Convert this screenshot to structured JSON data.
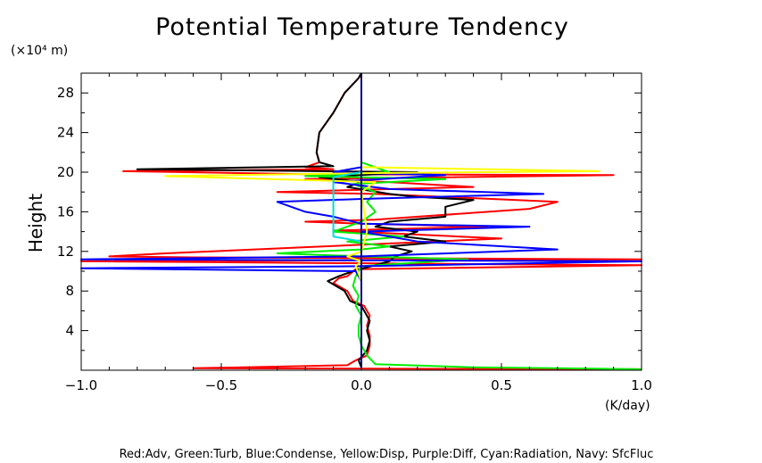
{
  "chart_data": {
    "type": "line",
    "title": "Potential Temperature Tendency",
    "y_unit": "(×10⁴ m)",
    "ylabel": "Height",
    "x_unit": "(K/day)",
    "xlim": [
      -1.0,
      1.0
    ],
    "ylim": [
      0,
      30
    ],
    "x_ticks": [
      -1.0,
      -0.5,
      0.0,
      0.5,
      1.0
    ],
    "x_tick_labels": [
      "−1.0",
      "−0.5",
      "0.0",
      "0.5",
      "1.0"
    ],
    "y_ticks": [
      4,
      8,
      12,
      16,
      20,
      24,
      28
    ],
    "y_tick_labels": [
      "4",
      "8",
      "12",
      "16",
      "20",
      "24",
      "28"
    ],
    "grid": false,
    "footer": "Red:Adv, Green:Turb, Blue:Condense, Yellow:Disp, Purple:Diff, Cyan:Radiation, Navy: SfcFluc",
    "series": [
      {
        "color": "#ff0000",
        "points": [
          [
            1.0,
            0.1
          ],
          [
            -0.6,
            0.2
          ],
          [
            -0.05,
            0.5
          ],
          [
            -0.02,
            1.0
          ],
          [
            0.02,
            1.5
          ],
          [
            0.03,
            2.5
          ],
          [
            0.03,
            3.5
          ],
          [
            0.02,
            4.5
          ],
          [
            0.03,
            5.5
          ],
          [
            0.01,
            6.5
          ],
          [
            -0.03,
            7.0
          ],
          [
            -0.05,
            8.0
          ],
          [
            -0.1,
            8.8
          ],
          [
            -0.08,
            9.3
          ],
          [
            -0.05,
            9.5
          ],
          [
            -0.02,
            10.2
          ],
          [
            1.0,
            10.6
          ],
          [
            -1.0,
            11.0
          ],
          [
            1.0,
            11.2
          ],
          [
            -0.6,
            11.4
          ],
          [
            -0.9,
            11.5
          ],
          [
            -0.7,
            11.8
          ],
          [
            -0.3,
            12.3
          ],
          [
            0.5,
            13.3
          ],
          [
            -0.1,
            14.1
          ],
          [
            0.45,
            14.5
          ],
          [
            0.0,
            14.8
          ],
          [
            -0.2,
            15.0
          ],
          [
            0.05,
            15.2
          ],
          [
            0.6,
            16.3
          ],
          [
            0.7,
            17.0
          ],
          [
            0.3,
            17.5
          ],
          [
            0.05,
            17.8
          ],
          [
            -0.3,
            18.0
          ],
          [
            0.4,
            18.5
          ],
          [
            0.1,
            19.0
          ],
          [
            -0.2,
            19.3
          ],
          [
            0.9,
            19.7
          ],
          [
            -0.2,
            19.8
          ],
          [
            -0.85,
            20.1
          ],
          [
            -0.1,
            20.3
          ],
          [
            -0.2,
            20.5
          ],
          [
            -0.15,
            21.0
          ],
          [
            -0.16,
            22.0
          ],
          [
            -0.15,
            24.0
          ],
          [
            -0.1,
            26.0
          ],
          [
            -0.06,
            28.0
          ],
          [
            -0.01,
            29.5
          ],
          [
            0.0,
            30.0
          ]
        ]
      },
      {
        "color": "#000000",
        "points": [
          [
            0.0,
            0.3
          ],
          [
            -0.01,
            1.0
          ],
          [
            0.02,
            2.0
          ],
          [
            0.03,
            3.0
          ],
          [
            0.02,
            4.0
          ],
          [
            0.03,
            5.0
          ],
          [
            0.0,
            6.5
          ],
          [
            -0.04,
            7.0
          ],
          [
            -0.06,
            8.0
          ],
          [
            -0.12,
            9.0
          ],
          [
            -0.08,
            9.5
          ],
          [
            -0.03,
            10.0
          ],
          [
            0.1,
            11.0
          ],
          [
            0.12,
            11.5
          ],
          [
            0.18,
            12.0
          ],
          [
            0.1,
            12.5
          ],
          [
            0.3,
            13.0
          ],
          [
            0.15,
            13.5
          ],
          [
            0.2,
            14.0
          ],
          [
            0.05,
            14.5
          ],
          [
            0.1,
            15.0
          ],
          [
            0.3,
            15.5
          ],
          [
            0.3,
            16.5
          ],
          [
            0.4,
            17.2
          ],
          [
            0.2,
            17.5
          ],
          [
            0.1,
            17.8
          ],
          [
            -0.05,
            18.5
          ],
          [
            0.0,
            19.0
          ],
          [
            -0.15,
            19.5
          ],
          [
            0.2,
            20.0
          ],
          [
            -0.8,
            20.3
          ],
          [
            -0.1,
            20.6
          ],
          [
            -0.15,
            21.0
          ],
          [
            -0.16,
            22.0
          ],
          [
            -0.15,
            24.0
          ],
          [
            -0.1,
            26.0
          ],
          [
            -0.06,
            28.0
          ],
          [
            -0.01,
            29.5
          ],
          [
            0.0,
            30.0
          ]
        ]
      },
      {
        "color": "#00ee00",
        "points": [
          [
            1.0,
            0.1
          ],
          [
            0.4,
            0.3
          ],
          [
            0.05,
            0.6
          ],
          [
            0.02,
            1.5
          ],
          [
            0.0,
            2.5
          ],
          [
            -0.01,
            3.5
          ],
          [
            -0.01,
            4.5
          ],
          [
            0.0,
            5.5
          ],
          [
            -0.02,
            6.5
          ],
          [
            -0.01,
            7.5
          ],
          [
            -0.03,
            8.5
          ],
          [
            -0.02,
            9.5
          ],
          [
            -0.01,
            10.0
          ],
          [
            0.0,
            10.5
          ],
          [
            0.38,
            11.2
          ],
          [
            0.0,
            11.5
          ],
          [
            -0.3,
            11.8
          ],
          [
            0.0,
            12.2
          ],
          [
            0.1,
            12.5
          ],
          [
            -0.05,
            13.0
          ],
          [
            0.15,
            13.5
          ],
          [
            -0.1,
            14.0
          ],
          [
            0.0,
            15.0
          ],
          [
            0.05,
            16.0
          ],
          [
            0.02,
            17.0
          ],
          [
            0.05,
            18.0
          ],
          [
            -0.03,
            18.8
          ],
          [
            0.3,
            19.3
          ],
          [
            -0.2,
            19.6
          ],
          [
            0.1,
            20.0
          ],
          [
            0.0,
            21.0
          ]
        ]
      },
      {
        "color": "#0000ff",
        "points": [
          [
            0.0,
            0.2
          ],
          [
            0.0,
            9.0
          ],
          [
            -0.02,
            10.0
          ],
          [
            -1.0,
            10.3
          ],
          [
            0.0,
            10.5
          ],
          [
            1.0,
            11.0
          ],
          [
            -1.0,
            11.2
          ],
          [
            0.0,
            11.5
          ],
          [
            0.7,
            12.2
          ],
          [
            0.2,
            13.0
          ],
          [
            0.0,
            14.0
          ],
          [
            0.6,
            14.5
          ],
          [
            0.0,
            14.8
          ],
          [
            -0.1,
            15.5
          ],
          [
            -0.2,
            16.0
          ],
          [
            -0.3,
            17.0
          ],
          [
            0.0,
            17.3
          ],
          [
            0.65,
            17.8
          ],
          [
            0.1,
            18.3
          ],
          [
            -0.1,
            19.0
          ],
          [
            0.3,
            19.7
          ],
          [
            -0.1,
            20.0
          ],
          [
            0.0,
            20.5
          ],
          [
            0.0,
            30.0
          ]
        ]
      },
      {
        "color": "#ffff00",
        "points": [
          [
            0.0,
            0.2
          ],
          [
            0.0,
            9.0
          ],
          [
            -0.02,
            10.5
          ],
          [
            0.0,
            11.0
          ],
          [
            -0.05,
            11.5
          ],
          [
            0.0,
            12.0
          ],
          [
            0.02,
            14.0
          ],
          [
            0.0,
            18.0
          ],
          [
            0.05,
            19.0
          ],
          [
            -0.7,
            19.6
          ],
          [
            0.0,
            19.9
          ],
          [
            0.85,
            20.1
          ],
          [
            0.0,
            20.5
          ],
          [
            0.0,
            30.0
          ]
        ]
      },
      {
        "color": "#00dddd",
        "points": [
          [
            0.0,
            0.2
          ],
          [
            0.0,
            13.0
          ],
          [
            -0.1,
            13.5
          ],
          [
            -0.1,
            19.5
          ],
          [
            0.0,
            20.0
          ],
          [
            0.0,
            30.0
          ]
        ]
      },
      {
        "color": "#000080",
        "points": [
          [
            0.0,
            0.2
          ],
          [
            0.0,
            30.0
          ]
        ]
      }
    ]
  }
}
